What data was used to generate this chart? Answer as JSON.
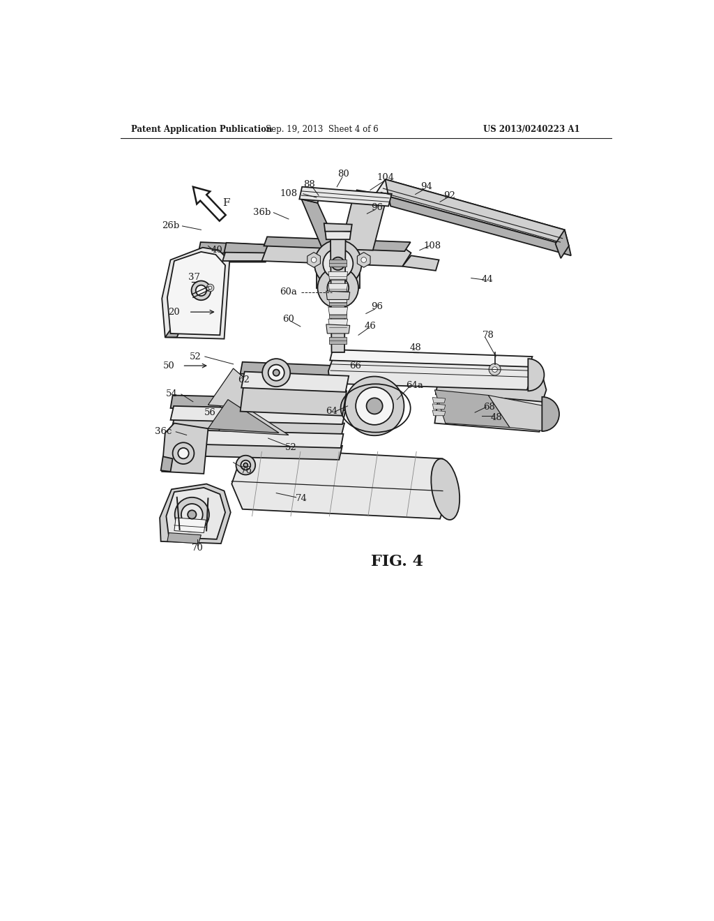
{
  "bg": "#ffffff",
  "lc": "#1a1a1a",
  "lw": 1.3,
  "lw2": 0.7,
  "lfs": 9.5,
  "hfs": 8.5,
  "header_left": "Patent Application Publication",
  "header_mid": "Sep. 19, 2013  Sheet 4 of 6",
  "header_right": "US 2013/0240223 A1",
  "fig_label": "FIG. 4",
  "fl": "#e8e8e8",
  "fm": "#d0d0d0",
  "fd": "#b0b0b0",
  "fw": "#f5f5f5"
}
